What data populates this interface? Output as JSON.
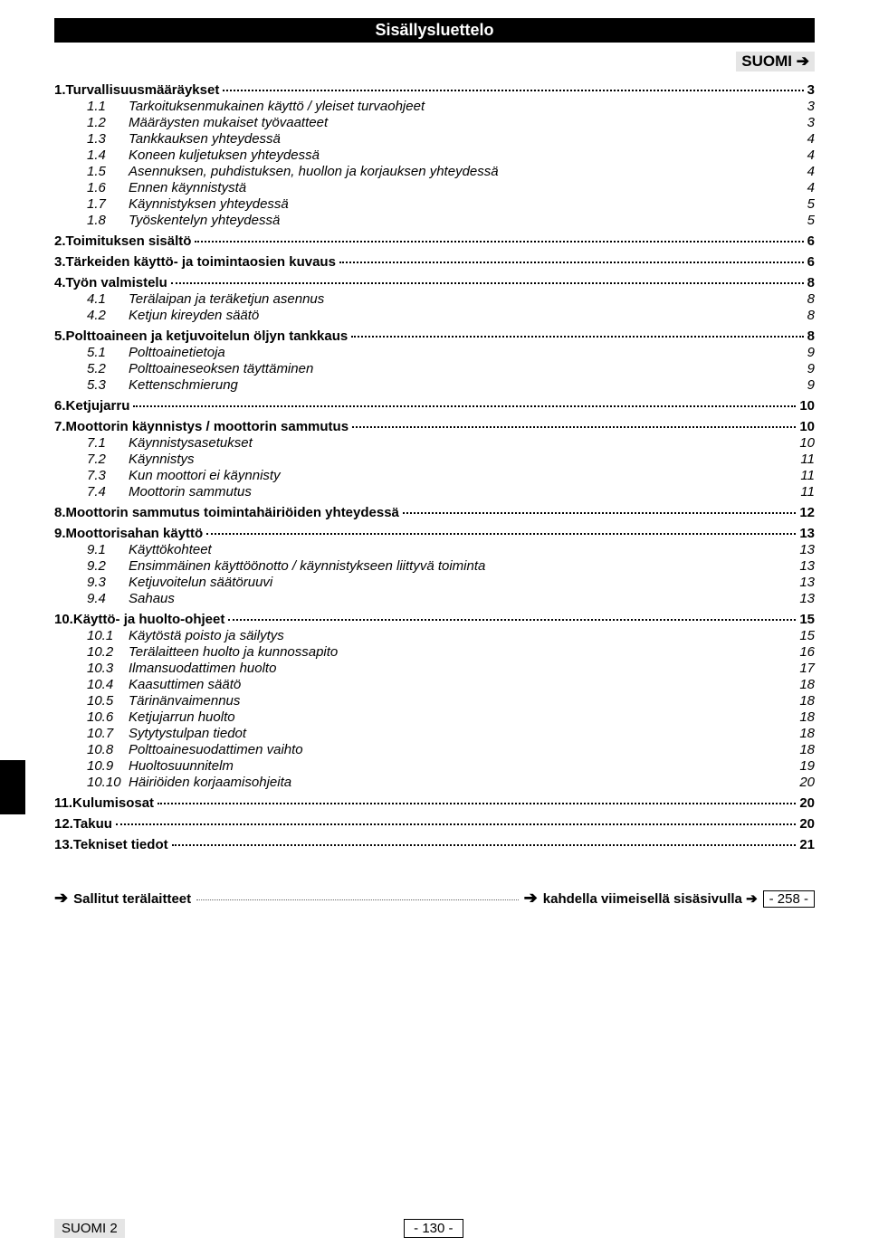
{
  "header": {
    "title": "Sisällysluettelo",
    "language_indicator": "SUOMI ➔"
  },
  "toc": [
    {
      "num": "1.",
      "label": "Turvallisuusmääräykset",
      "page": "3",
      "subs": [
        {
          "num": "1.1",
          "label": "Tarkoituksenmukainen käyttö / yleiset turvaohjeet",
          "page": "3"
        },
        {
          "num": "1.2",
          "label": "Määräysten mukaiset työvaatteet",
          "page": "3"
        },
        {
          "num": "1.3",
          "label": "Tankkauksen yhteydessä",
          "page": "4"
        },
        {
          "num": "1.4",
          "label": "Koneen kuljetuksen yhteydessä",
          "page": "4"
        },
        {
          "num": "1.5",
          "label": "Asennuksen, puhdistuksen, huollon ja korjauksen yhteydessä",
          "page": "4"
        },
        {
          "num": "1.6",
          "label": "Ennen käynnistystä",
          "page": "4"
        },
        {
          "num": "1.7",
          "label": "Käynnistyksen yhteydessä",
          "page": "5"
        },
        {
          "num": "1.8",
          "label": "Työskentelyn yhteydessä",
          "page": "5"
        }
      ]
    },
    {
      "num": "2.",
      "label": "Toimituksen sisältö",
      "page": "6",
      "subs": []
    },
    {
      "num": "3.",
      "label": "Tärkeiden käyttö- ja toimintaosien kuvaus",
      "page": "6",
      "subs": []
    },
    {
      "num": "4.",
      "label": "Työn valmistelu",
      "page": "8",
      "subs": [
        {
          "num": "4.1",
          "label": "Terälaipan ja teräketjun asennus",
          "page": "8"
        },
        {
          "num": "4.2",
          "label": "Ketjun kireyden säätö",
          "page": "8"
        }
      ]
    },
    {
      "num": "5.",
      "label": "Polttoaineen ja ketjuvoitelun öljyn tankkaus",
      "page": "8",
      "subs": [
        {
          "num": "5.1",
          "label": "Polttoainetietoja",
          "page": "9"
        },
        {
          "num": "5.2",
          "label": "Polttoaineseoksen täyttäminen",
          "page": "9"
        },
        {
          "num": "5.3",
          "label": "Kettenschmierung",
          "page": "9"
        }
      ]
    },
    {
      "num": "6.",
      "label": "Ketjujarru",
      "page": "10",
      "subs": []
    },
    {
      "num": "7.",
      "label": "Moottorin käynnistys / moottorin sammutus",
      "page": "10",
      "subs": [
        {
          "num": "7.1",
          "label": "Käynnistysasetukset",
          "page": "10"
        },
        {
          "num": "7.2",
          "label": "Käynnistys",
          "page": "11"
        },
        {
          "num": "7.3",
          "label": "Kun moottori ei käynnisty",
          "page": "11"
        },
        {
          "num": "7.4",
          "label": "Moottorin sammutus",
          "page": "11"
        }
      ]
    },
    {
      "num": "8.",
      "label": "Moottorin sammutus toimintahäiriöiden yhteydessä",
      "page": "12",
      "subs": []
    },
    {
      "num": "9.",
      "label": "Moottorisahan käyttö",
      "page": "13",
      "subs": [
        {
          "num": "9.1",
          "label": "Käyttökohteet",
          "page": "13"
        },
        {
          "num": "9.2",
          "label": "Ensimmäinen käyttöönotto / käynnistykseen liittyvä toiminta",
          "page": "13"
        },
        {
          "num": "9.3",
          "label": "Ketjuvoitelun säätöruuvi",
          "page": "13"
        },
        {
          "num": "9.4",
          "label": "Sahaus",
          "page": "13"
        }
      ]
    },
    {
      "num": "10.",
      "label": "Käyttö- ja huolto-ohjeet",
      "page": "15",
      "subs": [
        {
          "num": "10.1",
          "label": "Käytöstä poisto ja säilytys",
          "page": "15"
        },
        {
          "num": "10.2",
          "label": "Terälaitteen huolto ja kunnossapito",
          "page": "16"
        },
        {
          "num": "10.3",
          "label": "Ilmansuodattimen huolto",
          "page": "17"
        },
        {
          "num": "10.4",
          "label": "Kaasuttimen säätö",
          "page": "18"
        },
        {
          "num": "10.5",
          "label": "Tärinänvaimennus",
          "page": "18"
        },
        {
          "num": "10.6",
          "label": "Ketjujarrun huolto",
          "page": "18"
        },
        {
          "num": "10.7",
          "label": "Sytytystulpan tiedot",
          "page": "18"
        },
        {
          "num": "10.8",
          "label": "Polttoainesuodattimen vaihto",
          "page": "18"
        },
        {
          "num": "10.9",
          "label": "Huoltosuunnitelm",
          "page": "19"
        },
        {
          "num": "10.10",
          "label": "Häiriöiden korjaamisohjeita",
          "page": "20"
        }
      ]
    },
    {
      "num": "11.",
      "label": "Kulumisosat",
      "page": "20",
      "subs": []
    },
    {
      "num": "12.",
      "label": "Takuu",
      "page": "20",
      "subs": []
    },
    {
      "num": "13.",
      "label": "Tekniset tiedot",
      "page": "21",
      "subs": []
    }
  ],
  "appendix": {
    "arrow_left": "➔",
    "label_left": "Sallitut terälaitteet",
    "arrow_right": "➔",
    "label_right": "kahdella viimeisellä sisäsivulla ➔",
    "page_box": "- 258 -"
  },
  "footer": {
    "language": "SUOMI  2",
    "page_number": "- 130 -"
  }
}
